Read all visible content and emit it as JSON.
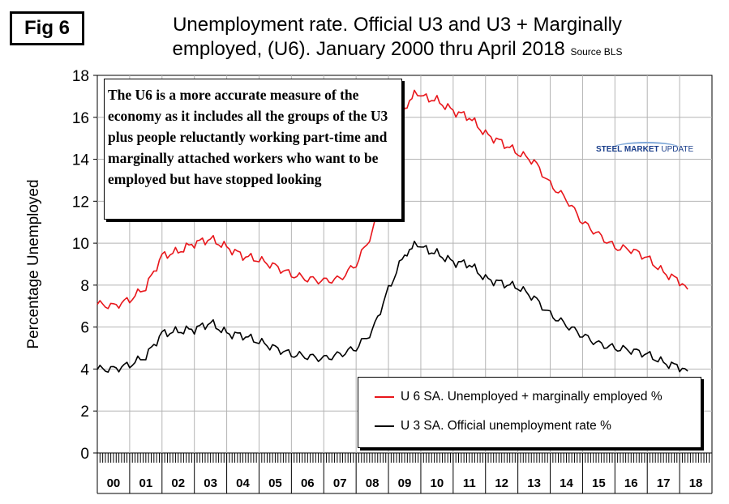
{
  "figure": {
    "badge": "Fig 6",
    "title_line1": "Unemployment rate. Official U3 and U3 + Marginally",
    "title_line2": "employed, (U6). January 2000 thru April 2018",
    "source": "Source BLS",
    "note": "The U6 is a more accurate measure of the economy as it includes all the groups of the U3 plus people reluctantly working part-time and marginally attached workers who want to be employed but have stopped looking",
    "logo_bold": "STEEL MARKET",
    "logo_light": "UPDATE"
  },
  "chart_data": {
    "type": "line",
    "ylabel": "Percentage Unemployed",
    "xlabel": "",
    "ylim": [
      0,
      18
    ],
    "yticks": [
      0,
      2,
      4,
      6,
      8,
      10,
      12,
      14,
      16,
      18
    ],
    "x_categories": [
      "00",
      "01",
      "02",
      "03",
      "04",
      "05",
      "06",
      "07",
      "08",
      "09",
      "10",
      "11",
      "12",
      "13",
      "14",
      "15",
      "16",
      "17",
      "18"
    ],
    "x_unit": "year (monthly points, Jan 2000 - Apr 2018)",
    "grid": true,
    "legend_placement": "bottom-right",
    "colors": {
      "u6": "#e8161b",
      "u3": "#000000"
    },
    "series": [
      {
        "name": "U 6 SA. Unemployed + marginally employed %",
        "key": "u6",
        "anchors": [
          [
            2000.0,
            7.1
          ],
          [
            2000.5,
            7.0
          ],
          [
            2001.0,
            7.3
          ],
          [
            2001.5,
            7.9
          ],
          [
            2002.0,
            9.4
          ],
          [
            2002.5,
            9.6
          ],
          [
            2003.0,
            10.0
          ],
          [
            2003.5,
            10.2
          ],
          [
            2004.0,
            9.8
          ],
          [
            2004.5,
            9.4
          ],
          [
            2005.0,
            9.2
          ],
          [
            2005.5,
            8.9
          ],
          [
            2006.0,
            8.5
          ],
          [
            2006.5,
            8.3
          ],
          [
            2007.0,
            8.2
          ],
          [
            2007.5,
            8.3
          ],
          [
            2008.0,
            9.0
          ],
          [
            2008.5,
            10.5
          ],
          [
            2009.0,
            13.5
          ],
          [
            2009.5,
            16.5
          ],
          [
            2009.8,
            17.2
          ],
          [
            2010.0,
            17.0
          ],
          [
            2010.5,
            16.8
          ],
          [
            2011.0,
            16.3
          ],
          [
            2011.5,
            16.0
          ],
          [
            2012.0,
            15.2
          ],
          [
            2012.5,
            14.8
          ],
          [
            2013.0,
            14.3
          ],
          [
            2013.5,
            13.9
          ],
          [
            2014.0,
            12.8
          ],
          [
            2014.5,
            12.1
          ],
          [
            2015.0,
            11.0
          ],
          [
            2015.5,
            10.4
          ],
          [
            2016.0,
            9.8
          ],
          [
            2016.5,
            9.7
          ],
          [
            2017.0,
            9.3
          ],
          [
            2017.5,
            8.6
          ],
          [
            2018.0,
            8.2
          ],
          [
            2018.25,
            7.8
          ]
        ]
      },
      {
        "name": "U 3 SA. Official unemployment rate %",
        "key": "u3",
        "anchors": [
          [
            2000.0,
            4.0
          ],
          [
            2000.5,
            4.0
          ],
          [
            2001.0,
            4.2
          ],
          [
            2001.5,
            4.6
          ],
          [
            2002.0,
            5.7
          ],
          [
            2002.5,
            5.8
          ],
          [
            2003.0,
            5.9
          ],
          [
            2003.5,
            6.2
          ],
          [
            2004.0,
            5.7
          ],
          [
            2004.5,
            5.6
          ],
          [
            2005.0,
            5.3
          ],
          [
            2005.5,
            5.0
          ],
          [
            2006.0,
            4.7
          ],
          [
            2006.5,
            4.6
          ],
          [
            2007.0,
            4.5
          ],
          [
            2007.5,
            4.7
          ],
          [
            2008.0,
            5.0
          ],
          [
            2008.5,
            5.8
          ],
          [
            2009.0,
            7.8
          ],
          [
            2009.5,
            9.5
          ],
          [
            2009.8,
            10.0
          ],
          [
            2010.0,
            9.8
          ],
          [
            2010.5,
            9.5
          ],
          [
            2011.0,
            9.1
          ],
          [
            2011.5,
            9.0
          ],
          [
            2012.0,
            8.3
          ],
          [
            2012.5,
            8.1
          ],
          [
            2013.0,
            7.9
          ],
          [
            2013.5,
            7.4
          ],
          [
            2014.0,
            6.6
          ],
          [
            2014.5,
            6.1
          ],
          [
            2015.0,
            5.6
          ],
          [
            2015.5,
            5.2
          ],
          [
            2016.0,
            5.0
          ],
          [
            2016.5,
            4.9
          ],
          [
            2017.0,
            4.7
          ],
          [
            2017.5,
            4.3
          ],
          [
            2018.0,
            4.1
          ],
          [
            2018.25,
            3.9
          ]
        ]
      }
    ]
  }
}
